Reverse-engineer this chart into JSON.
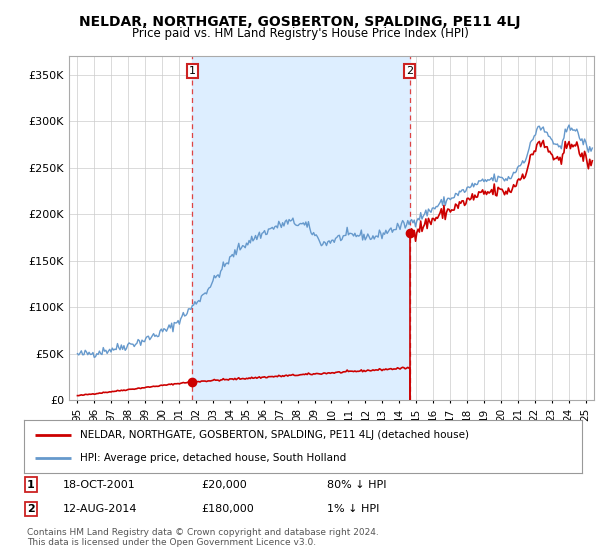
{
  "title": "NELDAR, NORTHGATE, GOSBERTON, SPALDING, PE11 4LJ",
  "subtitle": "Price paid vs. HM Land Registry's House Price Index (HPI)",
  "ylabel_ticks": [
    "£0",
    "£50K",
    "£100K",
    "£150K",
    "£200K",
    "£250K",
    "£300K",
    "£350K"
  ],
  "ytick_values": [
    0,
    50000,
    100000,
    150000,
    200000,
    250000,
    300000,
    350000
  ],
  "ylim": [
    0,
    370000
  ],
  "xlim_start": 1994.5,
  "xlim_end": 2025.5,
  "marker1_x": 2001.79,
  "marker1_y": 20000,
  "marker2_x": 2014.62,
  "marker2_y": 180000,
  "legend_line1": "NELDAR, NORTHGATE, GOSBERTON, SPALDING, PE11 4LJ (detached house)",
  "legend_line2": "HPI: Average price, detached house, South Holland",
  "footer": "Contains HM Land Registry data © Crown copyright and database right 2024.\nThis data is licensed under the Open Government Licence v3.0.",
  "price_color": "#cc0000",
  "hpi_color": "#6699cc",
  "hpi_fill_color": "#ddeeff",
  "vline_color": "#dd4444",
  "background_color": "#ffffff",
  "grid_color": "#cccccc",
  "xtick_years": [
    1995,
    1996,
    1997,
    1998,
    1999,
    2000,
    2001,
    2002,
    2003,
    2004,
    2005,
    2006,
    2007,
    2008,
    2009,
    2010,
    2011,
    2012,
    2013,
    2014,
    2015,
    2016,
    2017,
    2018,
    2019,
    2020,
    2021,
    2022,
    2023,
    2024,
    2025
  ]
}
